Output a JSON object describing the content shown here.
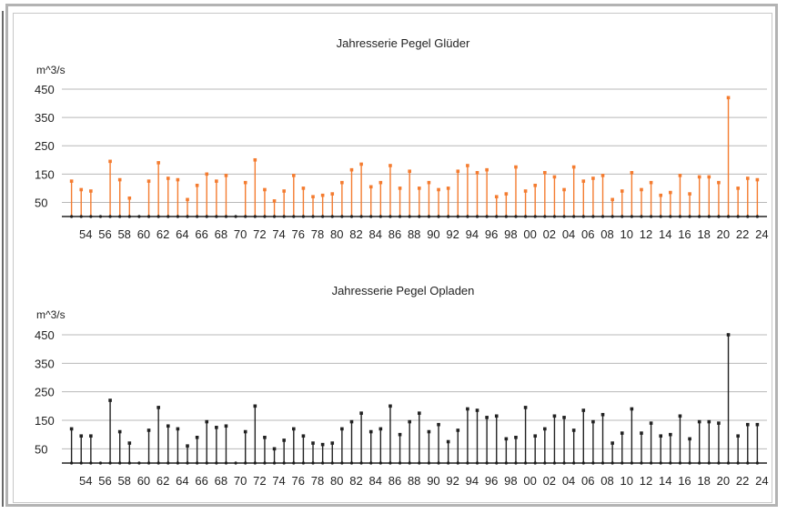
{
  "colors": {
    "glueder": "#f47c30",
    "opladen": "#222222",
    "grid": "#b8b8b8",
    "baseline": "#222222"
  },
  "chart_data": [
    {
      "type": "bar",
      "title": "Jahresserie Pegel Glüder",
      "ylabel": "m^3/s",
      "ylim": [
        0,
        450
      ],
      "yticks": [
        450,
        350,
        250,
        150,
        50
      ],
      "grid": true,
      "x_tick_labels": [
        "54",
        "56",
        "58",
        "60",
        "62",
        "64",
        "66",
        "68",
        "70",
        "72",
        "74",
        "76",
        "78",
        "80",
        "82",
        "84",
        "86",
        "88",
        "90",
        "92",
        "94",
        "96",
        "98",
        "00",
        "02",
        "04",
        "06",
        "08",
        "10",
        "12",
        "14",
        "16",
        "18",
        "20",
        "22",
        "24"
      ],
      "years": [
        1953,
        1954,
        1955,
        1956,
        1957,
        1958,
        1959,
        1960,
        1961,
        1962,
        1963,
        1964,
        1965,
        1966,
        1967,
        1968,
        1969,
        1970,
        1971,
        1972,
        1973,
        1974,
        1975,
        1976,
        1977,
        1978,
        1979,
        1980,
        1981,
        1982,
        1983,
        1984,
        1985,
        1986,
        1987,
        1988,
        1989,
        1990,
        1991,
        1992,
        1993,
        1994,
        1995,
        1996,
        1997,
        1998,
        1999,
        2000,
        2001,
        2002,
        2003,
        2004,
        2005,
        2006,
        2007,
        2008,
        2009,
        2010,
        2011,
        2012,
        2013,
        2014,
        2015,
        2016,
        2017,
        2018,
        2019,
        2020,
        2021,
        2022,
        2023,
        2024
      ],
      "values": [
        125,
        95,
        90,
        0,
        195,
        130,
        65,
        0,
        125,
        190,
        135,
        130,
        60,
        110,
        150,
        125,
        145,
        0,
        120,
        200,
        95,
        55,
        90,
        145,
        100,
        70,
        75,
        80,
        120,
        165,
        185,
        105,
        120,
        180,
        100,
        160,
        100,
        120,
        95,
        100,
        160,
        180,
        155,
        165,
        70,
        80,
        175,
        90,
        110,
        155,
        140,
        95,
        175,
        125,
        135,
        145,
        60,
        90,
        155,
        95,
        120,
        75,
        85,
        145,
        80,
        140,
        140,
        120,
        420,
        100,
        135,
        130
      ]
    },
    {
      "type": "bar",
      "title": "Jahresserie Pegel Opladen",
      "ylabel": "m^3/s",
      "ylim": [
        0,
        450
      ],
      "yticks": [
        450,
        350,
        250,
        150,
        50
      ],
      "grid": true,
      "x_tick_labels": [
        "54",
        "56",
        "58",
        "60",
        "62",
        "64",
        "66",
        "68",
        "70",
        "72",
        "74",
        "76",
        "78",
        "80",
        "82",
        "84",
        "86",
        "88",
        "90",
        "92",
        "94",
        "96",
        "98",
        "00",
        "02",
        "04",
        "06",
        "08",
        "10",
        "12",
        "14",
        "16",
        "18",
        "20",
        "22",
        "24"
      ],
      "years": [
        1953,
        1954,
        1955,
        1956,
        1957,
        1958,
        1959,
        1960,
        1961,
        1962,
        1963,
        1964,
        1965,
        1966,
        1967,
        1968,
        1969,
        1970,
        1971,
        1972,
        1973,
        1974,
        1975,
        1976,
        1977,
        1978,
        1979,
        1980,
        1981,
        1982,
        1983,
        1984,
        1985,
        1986,
        1987,
        1988,
        1989,
        1990,
        1991,
        1992,
        1993,
        1994,
        1995,
        1996,
        1997,
        1998,
        1999,
        2000,
        2001,
        2002,
        2003,
        2004,
        2005,
        2006,
        2007,
        2008,
        2009,
        2010,
        2011,
        2012,
        2013,
        2014,
        2015,
        2016,
        2017,
        2018,
        2019,
        2020,
        2021,
        2022,
        2023,
        2024
      ],
      "values": [
        120,
        95,
        95,
        0,
        220,
        110,
        70,
        0,
        115,
        195,
        130,
        120,
        60,
        90,
        145,
        125,
        130,
        0,
        110,
        200,
        90,
        50,
        80,
        120,
        95,
        70,
        65,
        70,
        120,
        145,
        175,
        110,
        120,
        200,
        100,
        145,
        175,
        110,
        135,
        75,
        115,
        190,
        185,
        160,
        165,
        85,
        90,
        195,
        95,
        120,
        165,
        160,
        115,
        185,
        145,
        170,
        70,
        105,
        190,
        105,
        140,
        95,
        100,
        165,
        85,
        145,
        145,
        140,
        450,
        95,
        135,
        135
      ]
    }
  ]
}
